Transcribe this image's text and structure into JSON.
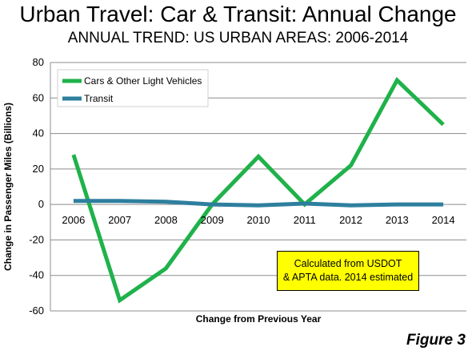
{
  "chart_data": {
    "type": "line",
    "title": "Urban Travel: Car & Transit: Annual Change",
    "subtitle": "ANNUAL TREND: US URBAN AREAS: 2006-2014",
    "xlabel": "Change from Previous Year",
    "ylabel": "Change in Passenger Miles (Billions)",
    "categories": [
      "2006",
      "2007",
      "2008",
      "2009",
      "2010",
      "2011",
      "2012",
      "2013",
      "2014"
    ],
    "ylim": [
      -60,
      80
    ],
    "yticks": [
      80,
      60,
      40,
      20,
      0,
      -20,
      -40,
      -60
    ],
    "grid": true,
    "legend_position": "top-left",
    "series": [
      {
        "name": "Cars & Other Light Vehicles",
        "color": "#1fb24a",
        "values": [
          28,
          -54,
          -36,
          0,
          27,
          0,
          22,
          70,
          45
        ]
      },
      {
        "name": "Transit",
        "color": "#2e7f9e",
        "values": [
          2,
          2,
          1.5,
          0,
          -0.5,
          0.5,
          -0.5,
          0,
          0
        ]
      }
    ],
    "annotation": [
      "Calculated from USDOT",
      "& APTA data. 2014 estimated"
    ],
    "figure_label": "Figure 3"
  }
}
